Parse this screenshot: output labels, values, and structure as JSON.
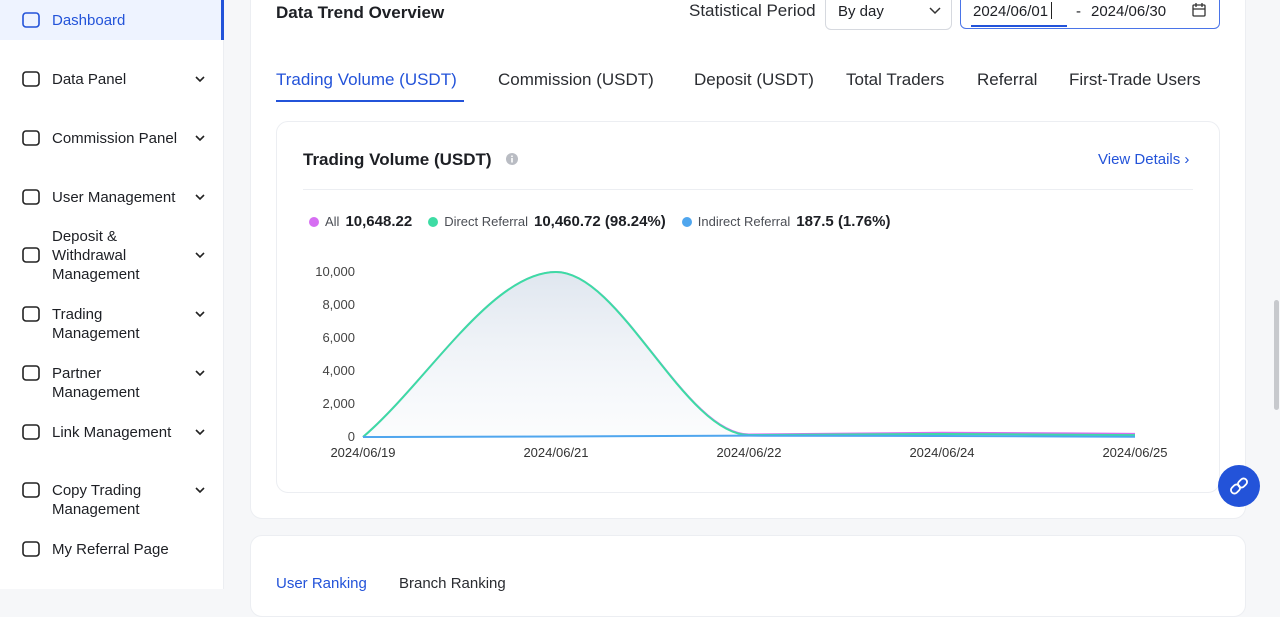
{
  "sidebar": {
    "items": [
      {
        "label": "Dashboard",
        "active": true,
        "expandable": false
      },
      {
        "label": "Data Panel",
        "active": false,
        "expandable": true
      },
      {
        "label": "Commission Panel",
        "active": false,
        "expandable": true
      },
      {
        "label": "User Management",
        "active": false,
        "expandable": true
      },
      {
        "label": "Deposit & Withdrawal Management",
        "active": false,
        "expandable": true
      },
      {
        "label": "Trading Management",
        "active": false,
        "expandable": true
      },
      {
        "label": "Partner Management",
        "active": false,
        "expandable": true
      },
      {
        "label": "Link Management",
        "active": false,
        "expandable": true
      },
      {
        "label": "Copy Trading Management",
        "active": false,
        "expandable": true
      },
      {
        "label": "My Referral Page",
        "active": false,
        "expandable": false
      }
    ]
  },
  "header": {
    "title": "Data Trend Overview",
    "period_label": "Statistical Period",
    "period_value": "By day",
    "date_start": "2024/06/01",
    "date_separator": "-",
    "date_end": "2024/06/30"
  },
  "tabs": {
    "items": [
      "Trading Volume (USDT)",
      "Commission (USDT)",
      "Deposit (USDT)",
      "Total Traders",
      "Referral",
      "First-Trade Users"
    ],
    "active": 0
  },
  "card": {
    "title": "Trading Volume (USDT)",
    "link": "View Details"
  },
  "chart_data": {
    "type": "line",
    "categories": [
      "2024/06/19",
      "2024/06/21",
      "2024/06/22",
      "2024/06/24",
      "2024/06/25"
    ],
    "series": [
      {
        "name": "All",
        "color": "#d66ef2",
        "total": "10,648.22",
        "values": [
          0,
          10000,
          150,
          260,
          190
        ]
      },
      {
        "name": "Direct Referral",
        "color": "#3ddca4",
        "total": "10,460.72 (98.24%)",
        "values": [
          0,
          10000,
          120,
          180,
          110
        ],
        "area": true
      },
      {
        "name": "Indirect Referral",
        "color": "#4fa6ee",
        "total": "187.5 (1.76%)",
        "values": [
          0,
          30,
          80,
          60,
          17
        ]
      }
    ],
    "ylim": [
      0,
      10000
    ],
    "yticks": [
      0,
      {
        "value": 2000,
        "label": "2,000"
      },
      {
        "value": 4000,
        "label": "4,000"
      },
      {
        "value": 6000,
        "label": "6,000"
      },
      {
        "value": 8000,
        "label": "8,000"
      },
      {
        "value": 10000,
        "label": "10,000"
      }
    ]
  },
  "bottom_tabs": {
    "items": [
      "User Ranking",
      "Branch Ranking"
    ],
    "active": 0
  }
}
